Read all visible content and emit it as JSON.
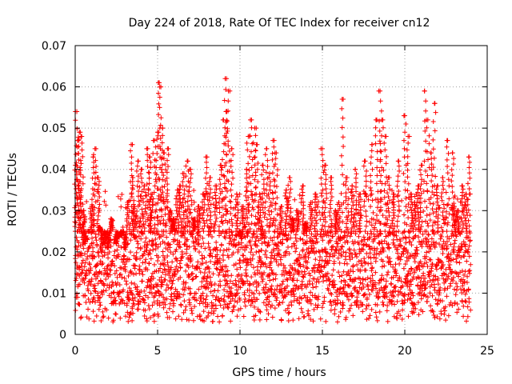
{
  "chart_data": {
    "type": "scatter",
    "title": "Day 224 of 2018, Rate Of TEC Index for receiver cn12",
    "xlabel": "GPS time / hours",
    "ylabel": "ROTI / TECUs",
    "xlim": [
      0,
      25
    ],
    "ylim": [
      0,
      0.07
    ],
    "x_ticks": [
      0,
      5,
      10,
      15,
      20,
      25
    ],
    "y_ticks": [
      0,
      0.01,
      0.02,
      0.03,
      0.04,
      0.05,
      0.06,
      0.07
    ],
    "x_tick_labels": [
      "0",
      "5",
      "10",
      "15",
      "20",
      "25"
    ],
    "y_tick_labels": [
      "0",
      "0.01",
      "0.02",
      "0.03",
      "0.04",
      "0.05",
      "0.06",
      "0.07"
    ],
    "grid": true,
    "marker": "+",
    "color": "#ff0000",
    "series": [
      {
        "x": [
          0.05,
          0.1,
          0.2,
          0.25,
          0.3,
          0.4,
          0.5,
          0.6,
          0.8,
          1.0,
          1.1,
          1.2,
          1.4,
          1.5,
          1.6,
          1.8,
          2.0,
          2.2,
          2.5,
          2.8,
          3.0,
          3.2,
          3.4,
          3.5,
          3.6,
          3.8,
          4.0,
          4.2,
          4.4,
          4.5,
          4.6,
          4.8,
          5.0,
          5.1,
          5.2,
          5.3,
          5.4,
          5.6,
          5.8,
          6.0,
          6.2,
          6.4,
          6.6,
          6.8,
          7.0,
          7.2,
          7.5,
          7.8,
          8.0,
          8.2,
          8.5,
          8.8,
          9.0,
          9.1,
          9.2,
          9.3,
          9.5,
          9.8,
          10.0,
          10.2,
          10.4,
          10.5,
          10.7,
          10.9,
          11.0,
          11.2,
          11.4,
          11.6,
          11.8,
          12.0,
          12.2,
          12.5,
          12.8,
          13.0,
          13.2,
          13.5,
          13.8,
          14.0,
          14.3,
          14.6,
          15.0,
          15.2,
          15.5,
          15.8,
          16.0,
          16.2,
          16.5,
          16.8,
          17.0,
          17.3,
          17.6,
          18.0,
          18.3,
          18.5,
          18.6,
          18.8,
          19.0,
          19.3,
          19.6,
          20.0,
          20.2,
          20.4,
          20.6,
          20.8,
          21.0,
          21.2,
          21.4,
          21.6,
          21.8,
          22.0,
          22.3,
          22.6,
          22.9,
          23.0,
          23.2,
          23.5,
          23.7,
          23.9
        ],
        "y": [
          0.041,
          0.054,
          0.047,
          0.049,
          0.037,
          0.048,
          0.03,
          0.022,
          0.025,
          0.031,
          0.043,
          0.045,
          0.038,
          0.026,
          0.02,
          0.022,
          0.021,
          0.028,
          0.022,
          0.024,
          0.021,
          0.032,
          0.046,
          0.038,
          0.031,
          0.042,
          0.04,
          0.036,
          0.045,
          0.043,
          0.034,
          0.047,
          0.049,
          0.061,
          0.06,
          0.05,
          0.044,
          0.045,
          0.03,
          0.028,
          0.035,
          0.036,
          0.039,
          0.042,
          0.04,
          0.028,
          0.031,
          0.034,
          0.043,
          0.038,
          0.036,
          0.041,
          0.052,
          0.062,
          0.054,
          0.059,
          0.045,
          0.034,
          0.024,
          0.031,
          0.04,
          0.048,
          0.052,
          0.05,
          0.046,
          0.034,
          0.041,
          0.045,
          0.039,
          0.047,
          0.044,
          0.031,
          0.035,
          0.038,
          0.028,
          0.03,
          0.036,
          0.027,
          0.032,
          0.034,
          0.045,
          0.041,
          0.038,
          0.03,
          0.032,
          0.057,
          0.038,
          0.036,
          0.04,
          0.034,
          0.042,
          0.046,
          0.052,
          0.059,
          0.052,
          0.048,
          0.038,
          0.034,
          0.042,
          0.053,
          0.048,
          0.034,
          0.032,
          0.036,
          0.041,
          0.059,
          0.052,
          0.044,
          0.056,
          0.036,
          0.038,
          0.047,
          0.044,
          0.031,
          0.03,
          0.036,
          0.034,
          0.043
        ]
      }
    ],
    "baseline_band": {
      "x_from": 0,
      "x_to": 24,
      "typical_min": 0.007,
      "typical_max": 0.025,
      "floor": 0.003
    }
  }
}
